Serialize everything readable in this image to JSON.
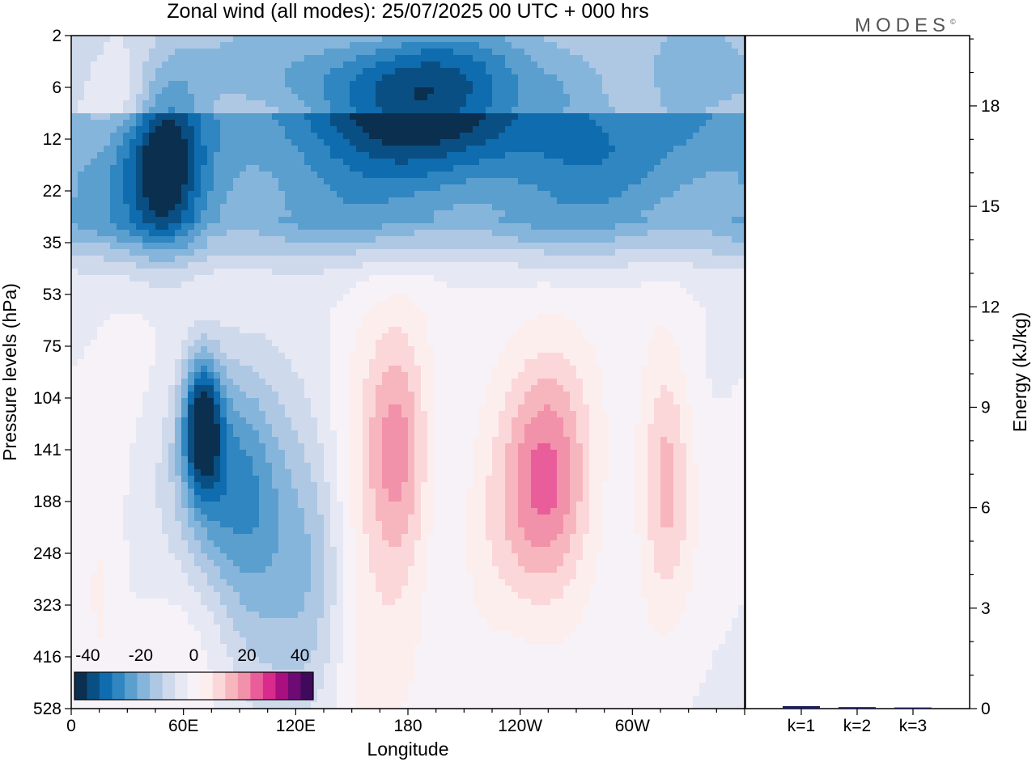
{
  "title": "Zonal wind (all modes):  25/07/2025  00 UTC  + 000 hrs",
  "logo": "MODES",
  "logo_mark": "©",
  "colors": {
    "scale": [
      "#0b2f4f",
      "#0a4f84",
      "#0f6cae",
      "#2f86c0",
      "#5b9fcf",
      "#86b5dc",
      "#aec8e4",
      "#cfd9ec",
      "#e6e9f4",
      "#f7f2f7",
      "#fdeeee",
      "#fbd7da",
      "#f7b6be",
      "#f291aa",
      "#ea5d9b",
      "#d82b8c",
      "#a81080",
      "#6d0a73",
      "#3f0a5c"
    ],
    "bar": "#1a1a5e"
  },
  "chart_data": [
    {
      "type": "heatmap",
      "variable": "Zonal wind",
      "xlabel": "Longitude",
      "ylabel": "Pressure levels (hPa)",
      "x_ticks": [
        "0",
        "60E",
        "120E",
        "180",
        "120W",
        "60W"
      ],
      "x_tick_values": [
        0,
        60,
        120,
        180,
        240,
        300
      ],
      "xlim": [
        0,
        360
      ],
      "y_ticks": [
        "2",
        "6",
        "12",
        "22",
        "35",
        "53",
        "75",
        "104",
        "141",
        "188",
        "248",
        "323",
        "416",
        "528"
      ],
      "colorbar": {
        "tick_labels": [
          "-40",
          "-20",
          "0",
          "20",
          "40"
        ],
        "min": -45,
        "max": 45,
        "step": 5
      },
      "features": [
        {
          "lon": 50,
          "level": 2.5,
          "value": -25,
          "sx": 14,
          "sy": 1.2
        },
        {
          "lon": 230,
          "level": 1.3,
          "value": -20,
          "sx": 60,
          "sy": 1.0
        },
        {
          "lon": 25,
          "level": 1.0,
          "value": 12,
          "sx": 18,
          "sy": 0.7
        },
        {
          "lon": 75,
          "level": 1.2,
          "value": 6,
          "sx": 30,
          "sy": 0.8
        },
        {
          "lon": 160,
          "level": 1.2,
          "value": -10,
          "sx": 40,
          "sy": 0.9
        },
        {
          "lon": 250,
          "level": 1.0,
          "value": 9,
          "sx": 30,
          "sy": 0.8
        },
        {
          "lon": 300,
          "level": 1.0,
          "value": 13,
          "sx": 18,
          "sy": 0.7
        },
        {
          "lon": 70,
          "level": 7.5,
          "value": -38,
          "sx": 7,
          "sy": 0.9
        },
        {
          "lon": 85,
          "level": 8.5,
          "value": -22,
          "sx": 22,
          "sy": 1.6
        },
        {
          "lon": 100,
          "level": 10.5,
          "value": -14,
          "sx": 22,
          "sy": 1.8
        },
        {
          "lon": 130,
          "level": 10.0,
          "value": -9,
          "sx": 12,
          "sy": 2.2
        },
        {
          "lon": 175,
          "level": 8.0,
          "value": 18,
          "sx": 12,
          "sy": 1.6
        },
        {
          "lon": 160,
          "level": 10.0,
          "value": 8,
          "sx": 18,
          "sy": 3.0
        },
        {
          "lon": 255,
          "level": 8.5,
          "value": 19,
          "sx": 16,
          "sy": 1.6
        },
        {
          "lon": 240,
          "level": 10.0,
          "value": 9,
          "sx": 28,
          "sy": 3.0
        },
        {
          "lon": 318,
          "level": 8.5,
          "value": 17,
          "sx": 10,
          "sy": 1.7
        },
        {
          "lon": 200,
          "level": 10.0,
          "value": -4,
          "sx": 10,
          "sy": 2.0
        },
        {
          "lon": 70,
          "level": 11.5,
          "value": 5,
          "sx": 20,
          "sy": 1.5
        },
        {
          "lon": 15,
          "level": 11.0,
          "value": 6,
          "sx": 8,
          "sy": 1.5
        },
        {
          "lon": 240,
          "level": 12.0,
          "value": -4,
          "sx": 22,
          "sy": 1.5
        }
      ]
    },
    {
      "type": "bar",
      "categories": [
        "k=1",
        "k=2",
        "k=3"
      ],
      "values": [
        0.05,
        0.02,
        0.01
      ],
      "ylabel": "Energy (kJ/kg)",
      "ylim": [
        0,
        20.1
      ],
      "y_ticks": [
        0,
        3,
        6,
        9,
        12,
        15,
        18
      ]
    }
  ]
}
